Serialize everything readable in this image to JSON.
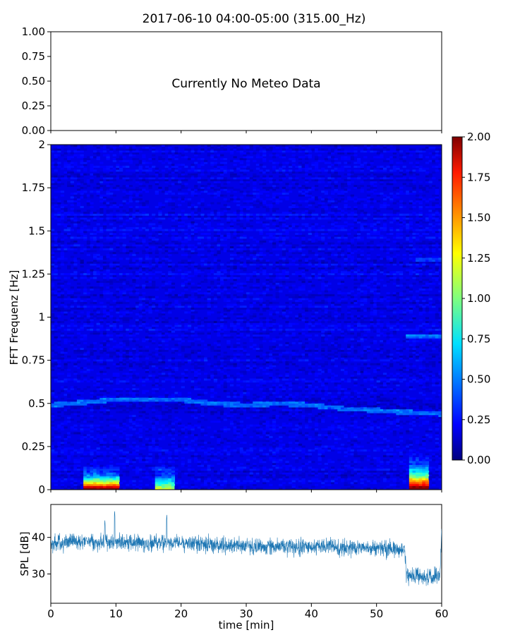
{
  "title": "2017-06-10 04:00-05:00 (315.00_Hz)",
  "chart_data": [
    {
      "type": "line",
      "panel": "meteo",
      "message": "Currently No Meteo Data",
      "ylim": [
        0,
        1
      ],
      "yticks": [
        "0.00",
        "0.25",
        "0.50",
        "0.75",
        "1.00"
      ],
      "xlim": [
        0,
        60
      ],
      "series": []
    },
    {
      "type": "heatmap",
      "panel": "spectrogram",
      "ylabel": "FFT Frequenz [Hz]",
      "ylim": [
        0,
        2
      ],
      "yticks": [
        {
          "value": 0,
          "label": "0"
        },
        {
          "value": 0.25,
          "label": "0.25"
        },
        {
          "value": 0.5,
          "label": "0.5"
        },
        {
          "value": 0.75,
          "label": "0.75"
        },
        {
          "value": 1,
          "label": "1"
        },
        {
          "value": 1.25,
          "label": "1.25"
        },
        {
          "value": 1.5,
          "label": "1.5"
        },
        {
          "value": 1.75,
          "label": "1.75"
        },
        {
          "value": 2,
          "label": "2"
        }
      ],
      "xlim": [
        0,
        60
      ],
      "colormap": "jet",
      "colorbar": {
        "range": [
          0,
          2
        ],
        "ticks": [
          "0.00",
          "0.25",
          "0.50",
          "0.75",
          "1.00",
          "1.25",
          "1.50",
          "1.75",
          "2.00"
        ]
      },
      "background_level": 0.2,
      "ridge": [
        [
          0,
          0.49
        ],
        [
          3,
          0.5
        ],
        [
          6,
          0.51
        ],
        [
          9,
          0.52
        ],
        [
          12,
          0.525
        ],
        [
          16,
          0.52
        ],
        [
          20,
          0.52
        ],
        [
          25,
          0.5
        ],
        [
          30,
          0.49
        ],
        [
          35,
          0.5
        ],
        [
          40,
          0.49
        ],
        [
          45,
          0.47
        ],
        [
          50,
          0.46
        ],
        [
          54,
          0.45
        ],
        [
          60,
          0.44
        ]
      ],
      "hotspots": [
        {
          "x0": 5.2,
          "x1": 10.5,
          "y1": 0.13,
          "peak": 2.0
        },
        {
          "x0": 15.8,
          "x1": 19.0,
          "y1": 0.13,
          "peak": 1.0
        },
        {
          "x0": 54.8,
          "x1": 58.0,
          "y1": 0.2,
          "peak": 2.0
        }
      ]
    },
    {
      "type": "line",
      "panel": "spl",
      "xlabel": "time [min]",
      "ylabel": "SPL [dB]",
      "xlim": [
        0,
        60
      ],
      "ylim": [
        22,
        49
      ],
      "xticks": [
        0,
        10,
        20,
        30,
        40,
        50,
        60
      ],
      "yticks": [
        30,
        40
      ],
      "color": "#1f77b4",
      "series": [
        {
          "x": [
            0,
            5,
            10,
            15,
            20,
            25,
            30,
            35,
            40,
            45,
            50,
            54.3,
            54.6,
            57,
            59.7,
            60
          ],
          "values": [
            38.5,
            39,
            38.5,
            38.5,
            38.5,
            38,
            37.5,
            37.5,
            37.5,
            37.2,
            37,
            36.8,
            29.5,
            29,
            29.5,
            41
          ]
        }
      ],
      "spikes": [
        [
          8.3,
          45
        ],
        [
          9.8,
          47.5
        ],
        [
          17.8,
          46.5
        ]
      ]
    }
  ]
}
